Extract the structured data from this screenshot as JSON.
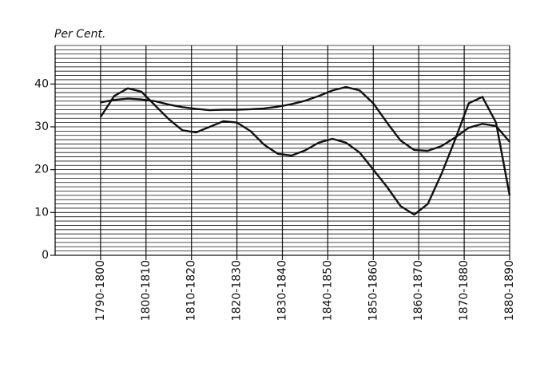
{
  "chart_data": {
    "type": "line",
    "y_label": "Per Cent.",
    "x": [
      1800,
      1803,
      1806,
      1809,
      1812,
      1815,
      1818,
      1821,
      1824,
      1827,
      1830,
      1833,
      1836,
      1839,
      1842,
      1845,
      1848,
      1851,
      1854,
      1857,
      1860,
      1863,
      1866,
      1869,
      1872,
      1875,
      1878,
      1881,
      1884,
      1887,
      1890
    ],
    "xlim": [
      1790,
      1890
    ],
    "xticks": [
      {
        "value": 1800,
        "label": "1790-1800"
      },
      {
        "value": 1810,
        "label": "1800-1810"
      },
      {
        "value": 1820,
        "label": "1810-1820"
      },
      {
        "value": 1830,
        "label": "1820-1830"
      },
      {
        "value": 1840,
        "label": "1830-1840"
      },
      {
        "value": 1850,
        "label": "1840-1850"
      },
      {
        "value": 1860,
        "label": "1850-1860"
      },
      {
        "value": 1870,
        "label": "1860-1870"
      },
      {
        "value": 1880,
        "label": "1870-1880"
      },
      {
        "value": 1890,
        "label": "1880-1890"
      }
    ],
    "ylim": [
      0,
      49
    ],
    "yticks": [
      0,
      10,
      20,
      30,
      40
    ],
    "grid": true,
    "series": [
      {
        "color": "#111111",
        "values": [
          32.3,
          37.2,
          39,
          38.2,
          35,
          31.8,
          29.2,
          28.7,
          30,
          31.3,
          31,
          29,
          25.8,
          23.7,
          23.3,
          24.5,
          26.3,
          27.2,
          26.3,
          24,
          20,
          16,
          11.5,
          9.5,
          12,
          19,
          27,
          35.5,
          37,
          31,
          14
        ]
      },
      {
        "color": "#111111",
        "values": [
          35.7,
          36.3,
          36.6,
          36.4,
          36,
          35.2,
          34.6,
          34.2,
          33.9,
          34,
          34,
          34.1,
          34.3,
          34.7,
          35.3,
          36.1,
          37.2,
          38.5,
          39.3,
          38.5,
          35.5,
          31,
          26.8,
          24.6,
          24.4,
          25.5,
          27.5,
          29.8,
          30.7,
          30.2,
          26.5
        ]
      }
    ]
  }
}
